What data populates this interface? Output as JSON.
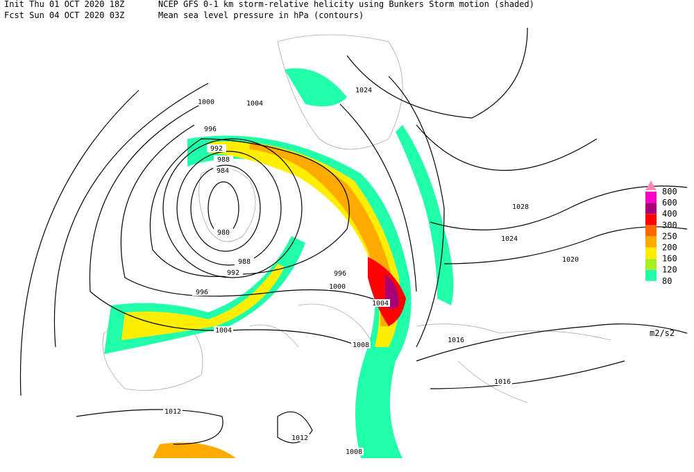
{
  "header": {
    "init": "Init  Thu 01 OCT 2020 18Z",
    "fcst": "Fcst Sun 04 OCT 2020 03Z",
    "title": "NCEP GFS 0-1 km storm-relative helicity using Bunkers Storm motion (shaded)",
    "subtitle": "Mean sea level pressure in hPa (contours)"
  },
  "legend": {
    "unit": "m2/s2",
    "levels": [
      {
        "value": 800,
        "color": "#ff88bb"
      },
      {
        "value": 600,
        "color": "#ff00cc"
      },
      {
        "value": 400,
        "color": "#aa0077"
      },
      {
        "value": 300,
        "color": "#ff0000"
      },
      {
        "value": 250,
        "color": "#ff6600"
      },
      {
        "value": 200,
        "color": "#ffaa00"
      },
      {
        "value": 160,
        "color": "#ffee00"
      },
      {
        "value": 120,
        "color": "#aaee22"
      },
      {
        "value": 80,
        "color": "#22ffaa"
      }
    ]
  },
  "contour_labels": [
    "1000",
    "1004",
    "996",
    "992",
    "988",
    "984",
    "980",
    "988",
    "992",
    "996",
    "1004",
    "1012",
    "1012",
    "1008",
    "1008",
    "1004",
    "1000",
    "996",
    "1016",
    "1016",
    "1020",
    "1024",
    "1028",
    "1024"
  ]
}
